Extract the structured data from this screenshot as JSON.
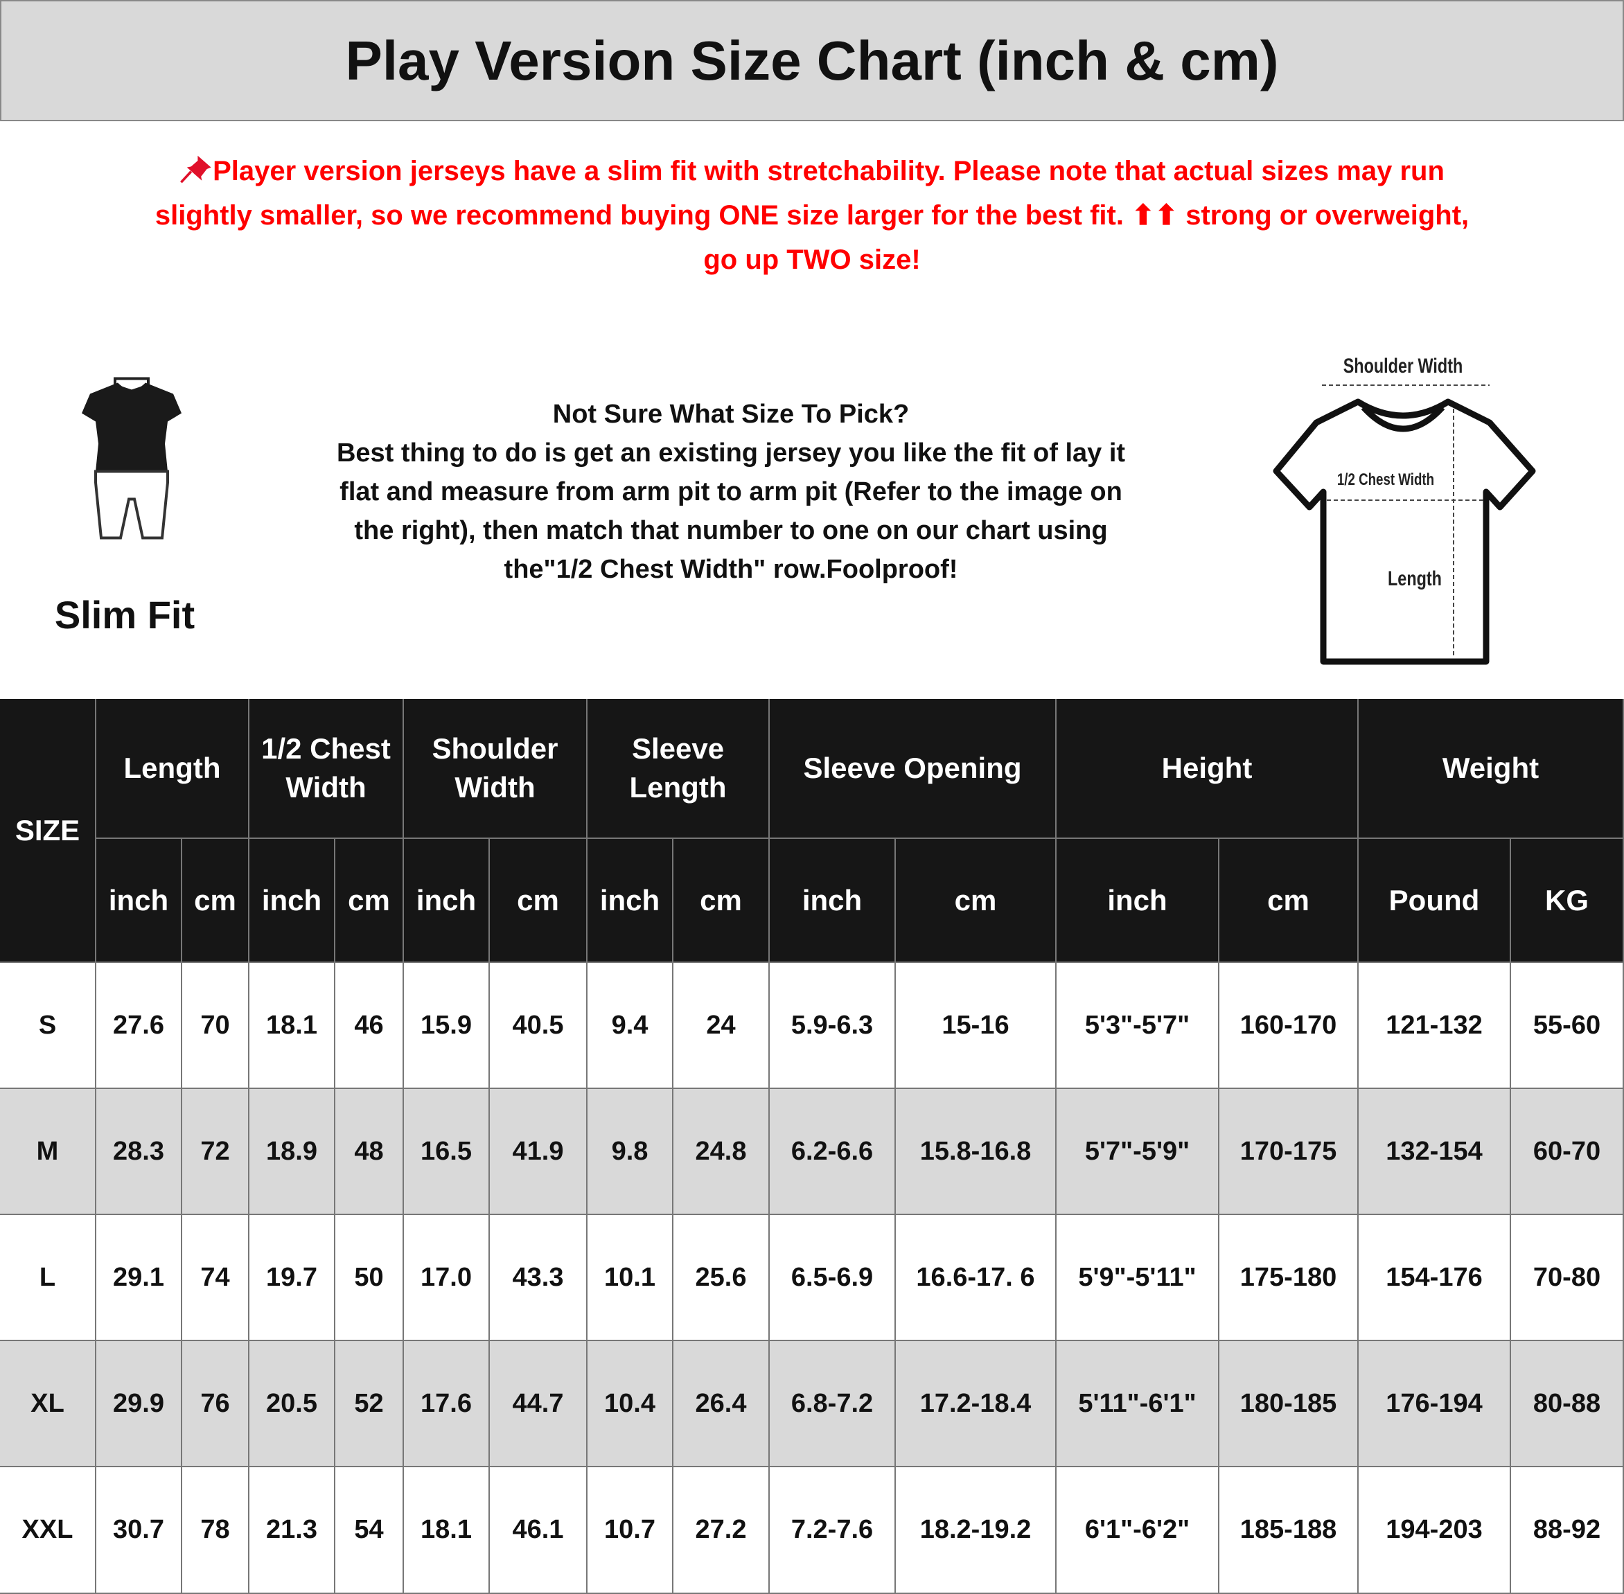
{
  "title": "Play Version Size Chart (inch & cm)",
  "notice": {
    "icon": "pushpin-icon",
    "lines": [
      "Player version jerseys have a slim fit with stretchability. Please note that actual sizes may run",
      "slightly smaller, so we recommend buying ONE size larger for the best fit. ⬆⬆ strong or overweight,",
      "go up TWO size!"
    ],
    "color": "#ff0000"
  },
  "slim_fit": {
    "label": "Slim Fit",
    "icon": "mannequin-icon"
  },
  "guide": {
    "heading": "Not Sure What Size To Pick?",
    "lines": [
      "Best thing to do is get an existing jersey you like the fit of lay it",
      "flat and measure from arm pit to arm pit (Refer to the image on",
      "the right), then match that number to one on our chart using",
      "the\"1/2 Chest Width\" row.Foolproof!"
    ]
  },
  "diagram": {
    "shoulder_width": "Shoulder Width",
    "chest_width": "1/2 Chest Width",
    "length": "Length",
    "icon": "tshirt-icon"
  },
  "table": {
    "size_header": "SIZE",
    "groups": [
      "Length",
      "1/2 Chest\nWidth",
      "Shoulder\nWidth",
      "Sleeve\nLength",
      "Sleeve Opening",
      "Height",
      "Weight"
    ],
    "units": [
      "inch",
      "cm",
      "inch",
      "cm",
      "inch",
      "cm",
      "inch",
      "cm",
      "inch",
      "cm",
      "inch",
      "cm",
      "Pound",
      "KG"
    ],
    "rows": [
      [
        "S",
        "27.6",
        "70",
        "18.1",
        "46",
        "15.9",
        "40.5",
        "9.4",
        "24",
        "5.9-6.3",
        "15-16",
        "5'3\"-5'7\"",
        "160-170",
        "121-132",
        "55-60"
      ],
      [
        "M",
        "28.3",
        "72",
        "18.9",
        "48",
        "16.5",
        "41.9",
        "9.8",
        "24.8",
        "6.2-6.6",
        "15.8-16.8",
        "5'7\"-5'9\"",
        "170-175",
        "132-154",
        "60-70"
      ],
      [
        "L",
        "29.1",
        "74",
        "19.7",
        "50",
        "17.0",
        "43.3",
        "10.1",
        "25.6",
        "6.5-6.9",
        "16.6-17. 6",
        "5'9\"-5'11\"",
        "175-180",
        "154-176",
        "70-80"
      ],
      [
        "XL",
        "29.9",
        "76",
        "20.5",
        "52",
        "17.6",
        "44.7",
        "10.4",
        "26.4",
        "6.8-7.2",
        "17.2-18.4",
        "5'11\"-6'1\"",
        "180-185",
        "176-194",
        "80-88"
      ],
      [
        "XXL",
        "30.7",
        "78",
        "21.3",
        "54",
        "18.1",
        "46.1",
        "10.7",
        "27.2",
        "7.2-7.6",
        "18.2-19.2",
        "6'1\"-6'2\"",
        "185-188",
        "194-203",
        "88-92"
      ]
    ]
  }
}
